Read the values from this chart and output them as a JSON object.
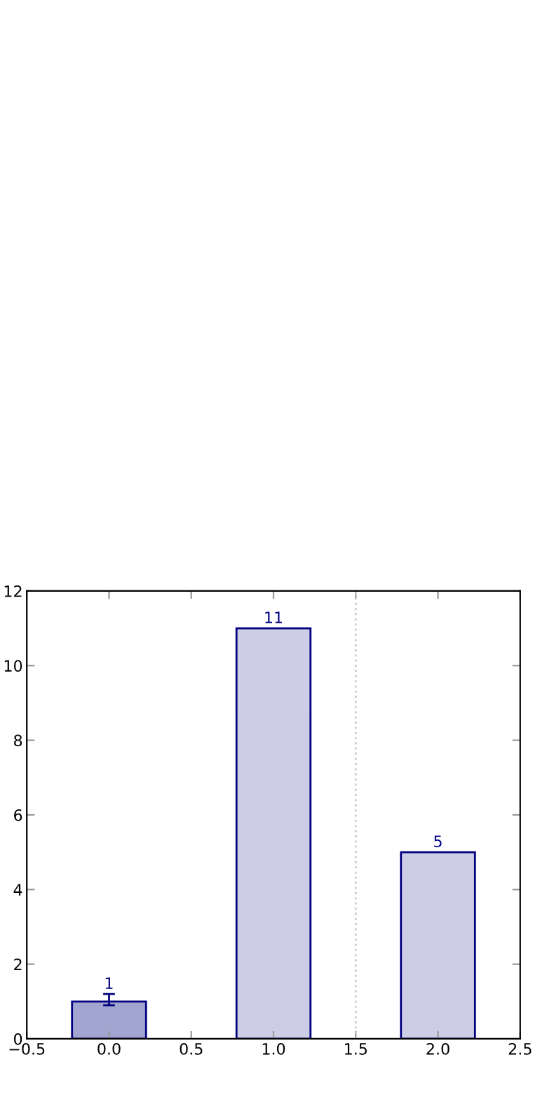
{
  "chart_data": {
    "type": "bar",
    "x": [
      0,
      1,
      2
    ],
    "values": [
      1,
      11,
      5
    ],
    "colors": [
      "#a3a5d1",
      "#cdcee5",
      "#cdcee5"
    ],
    "errors": [
      [
        0.9,
        1.2
      ],
      null,
      null
    ],
    "data_labels": true,
    "xlim": [
      -0.5,
      2.5
    ],
    "xticks": [
      {
        "value": -0.5,
        "label": "−0.5"
      },
      {
        "value": 0,
        "label": "0.0"
      },
      0.5,
      {
        "value": 1,
        "label": "1.0"
      },
      1.5,
      {
        "value": 2,
        "label": "2.0"
      },
      2.5
    ],
    "ylim": [
      0,
      12
    ],
    "yticks": [
      0,
      2,
      4,
      6,
      8,
      10,
      12
    ],
    "ref_lines": [
      {
        "axis": "x",
        "value": 1.5,
        "color": "#c8c8c8",
        "line_style": "dotted"
      }
    ],
    "grid": false
  }
}
